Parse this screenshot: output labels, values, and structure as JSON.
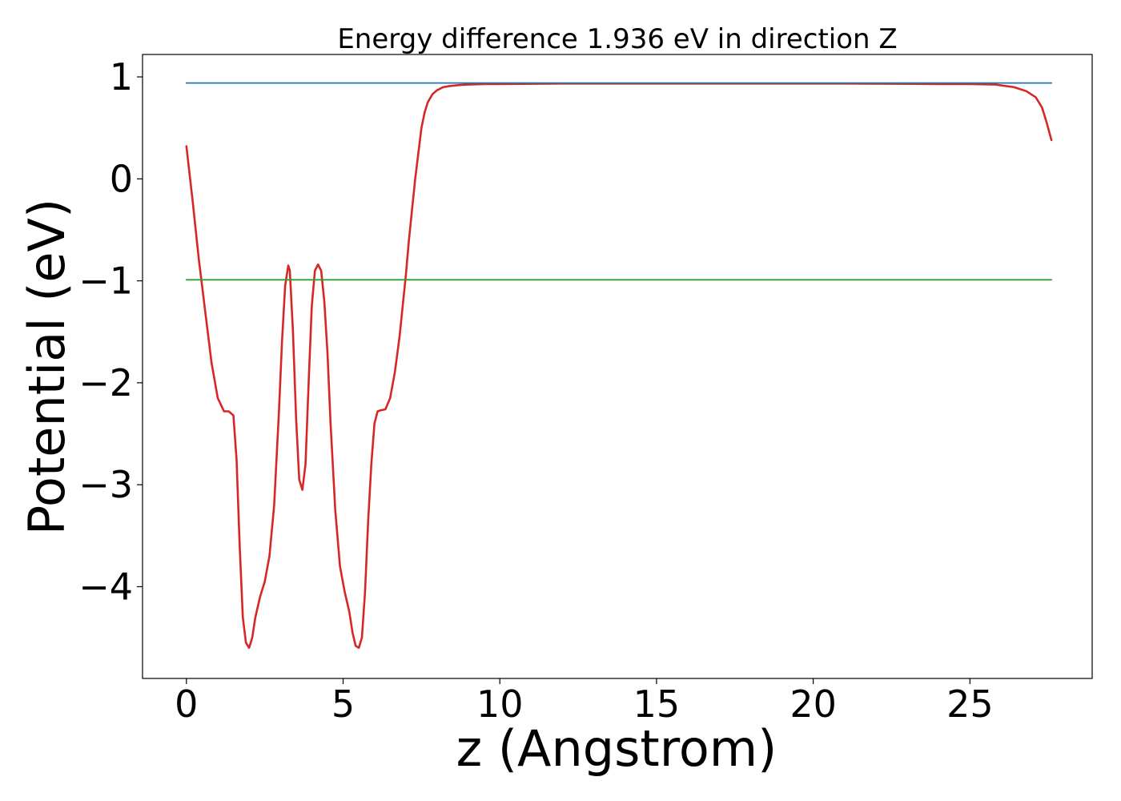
{
  "chart_data": {
    "type": "line",
    "title": "Energy difference 1.936 eV in direction Z",
    "xlabel": "z (Angstrom)",
    "ylabel": "Potential (eV)",
    "xlim": [
      -1.4,
      28.9
    ],
    "ylim": [
      -4.9,
      1.22
    ],
    "xticks": [
      0,
      5,
      10,
      15,
      20,
      25
    ],
    "xtick_labels": [
      "0",
      "5",
      "10",
      "15",
      "20",
      "25"
    ],
    "yticks": [
      1,
      0,
      -1,
      -2,
      -3,
      -4
    ],
    "ytick_labels": [
      "1",
      "0",
      "−1",
      "−2",
      "−3",
      "−4"
    ],
    "grid": false,
    "legend": "none",
    "series": [
      {
        "color": "#d62728",
        "x": [
          0,
          0.2,
          0.4,
          0.6,
          0.8,
          1.0,
          1.2,
          1.35,
          1.5,
          1.6,
          1.7,
          1.8,
          1.9,
          2.0,
          2.1,
          2.2,
          2.35,
          2.5,
          2.65,
          2.8,
          2.95,
          3.05,
          3.15,
          3.25,
          3.3,
          3.4,
          3.5,
          3.6,
          3.7,
          3.8,
          3.9,
          4.0,
          4.1,
          4.2,
          4.3,
          4.4,
          4.5,
          4.6,
          4.75,
          4.9,
          5.05,
          5.2,
          5.3,
          5.4,
          5.5,
          5.6,
          5.7,
          5.8,
          5.9,
          6.0,
          6.1,
          6.2,
          6.35,
          6.5,
          6.65,
          6.8,
          6.9,
          7.0,
          7.1,
          7.2,
          7.3,
          7.4,
          7.5,
          7.6,
          7.7,
          7.85,
          8.0,
          8.2,
          8.4,
          8.7,
          9.0,
          9.5,
          10.0,
          12.0,
          15.0,
          18.0,
          21.0,
          24.0,
          25.0,
          25.8,
          26.4,
          26.8,
          27.1,
          27.3,
          27.45,
          27.6
        ],
        "y": [
          0.32,
          -0.22,
          -0.8,
          -1.3,
          -1.8,
          -2.15,
          -2.28,
          -2.28,
          -2.32,
          -2.75,
          -3.6,
          -4.3,
          -4.55,
          -4.6,
          -4.5,
          -4.3,
          -4.1,
          -3.95,
          -3.7,
          -3.2,
          -2.3,
          -1.6,
          -1.05,
          -0.85,
          -0.9,
          -1.5,
          -2.35,
          -2.95,
          -3.05,
          -2.8,
          -2.0,
          -1.25,
          -0.9,
          -0.84,
          -0.9,
          -1.2,
          -1.7,
          -2.4,
          -3.25,
          -3.8,
          -4.05,
          -4.25,
          -4.45,
          -4.58,
          -4.6,
          -4.5,
          -4.05,
          -3.35,
          -2.8,
          -2.4,
          -2.28,
          -2.27,
          -2.26,
          -2.15,
          -1.9,
          -1.55,
          -1.25,
          -0.95,
          -0.6,
          -0.3,
          0.0,
          0.25,
          0.5,
          0.65,
          0.75,
          0.83,
          0.87,
          0.9,
          0.91,
          0.92,
          0.925,
          0.93,
          0.93,
          0.935,
          0.935,
          0.935,
          0.935,
          0.93,
          0.93,
          0.925,
          0.9,
          0.86,
          0.8,
          0.7,
          0.55,
          0.38
        ]
      },
      {
        "color": "#1f77b4",
        "x": [
          0,
          27.6
        ],
        "y": [
          0.94,
          0.94
        ]
      },
      {
        "color": "#2ca02c",
        "x": [
          0,
          27.6
        ],
        "y": [
          -0.99,
          -0.99
        ]
      }
    ]
  }
}
